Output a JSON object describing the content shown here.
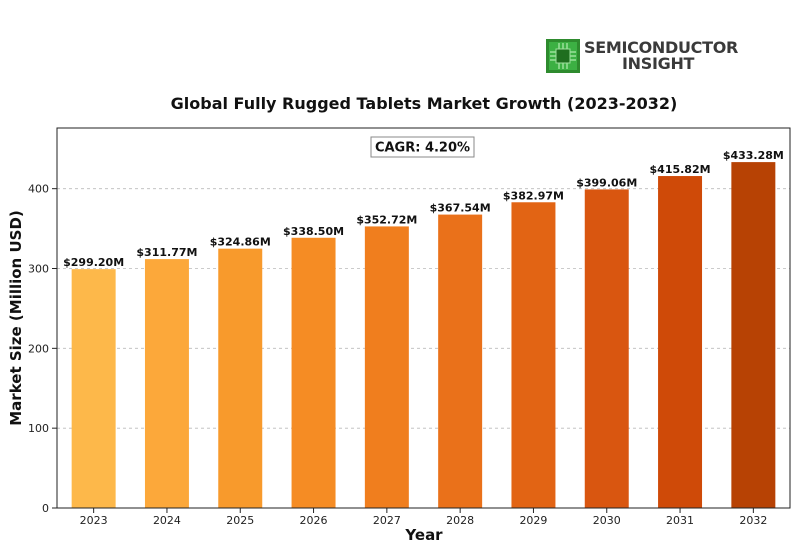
{
  "brand": {
    "line1": "SEMICONDUCTOR",
    "line2": "INSIGHT",
    "icon": "chip-icon",
    "icon_color": "#3cb043"
  },
  "chart_data": {
    "type": "bar",
    "title": "Global Fully Rugged Tablets Market Growth (2023-2032)",
    "xlabel": "Year",
    "ylabel": "Market Size (Million USD)",
    "categories": [
      "2023",
      "2024",
      "2025",
      "2026",
      "2027",
      "2028",
      "2029",
      "2030",
      "2031",
      "2032"
    ],
    "values": [
      299.2,
      311.77,
      324.86,
      338.5,
      352.72,
      367.54,
      382.97,
      399.06,
      415.82,
      433.28
    ],
    "data_labels": [
      "$299.20M",
      "$311.77M",
      "$324.86M",
      "$338.50M",
      "$352.72M",
      "$367.54M",
      "$382.97M",
      "$399.06M",
      "$415.82M",
      "$433.28M"
    ],
    "colors": [
      "#fdb84a",
      "#fca83a",
      "#f89a2c",
      "#f58c24",
      "#f07e1e",
      "#ea711a",
      "#e26414",
      "#d95610",
      "#cf4a08",
      "#b74204"
    ],
    "ylim": [
      0,
      476
    ],
    "yticks": [
      0,
      100,
      200,
      300,
      400
    ],
    "grid": true,
    "annotation": "CAGR: 4.20%"
  }
}
